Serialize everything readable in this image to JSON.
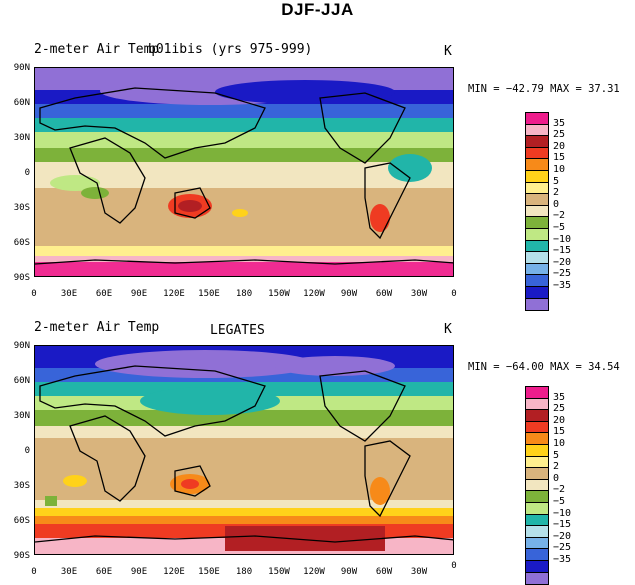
{
  "title": "DJF-JJA",
  "panels": [
    {
      "left_title": "2-meter Air Temp",
      "center_title": "b01ibis (yrs 975-999)",
      "units": "K",
      "stats": "MIN = −42.79 MAX =  37.31"
    },
    {
      "left_title": "2-meter Air Temp",
      "center_title": "LEGATES",
      "units": "K",
      "stats": "MIN = −64.00 MAX =  34.54"
    }
  ],
  "lat_labels": [
    "90N",
    "60N",
    "30N",
    "0",
    "30S",
    "60S",
    "90S"
  ],
  "lon_labels": [
    "0",
    "30E",
    "60E",
    "90E",
    "120E",
    "150E",
    "180",
    "150W",
    "120W",
    "90W",
    "60W",
    "30W",
    "0"
  ],
  "legend": {
    "labels": [
      "35",
      "25",
      "20",
      "15",
      "10",
      "5",
      "2",
      "0",
      "−2",
      "−5",
      "−10",
      "−15",
      "−20",
      "−25",
      "−35"
    ],
    "colors": [
      "#ee1d8c",
      "#f7b5c6",
      "#b21f23",
      "#ef3b22",
      "#f78a19",
      "#ffd21a",
      "#ffef8e",
      "#d9b47d",
      "#f2e6c0",
      "#7db23a",
      "#bfe884",
      "#21b5a9",
      "#b5e0ea",
      "#76b1e8",
      "#3864d9",
      "#1a1ac5",
      "#9070d6"
    ]
  }
}
